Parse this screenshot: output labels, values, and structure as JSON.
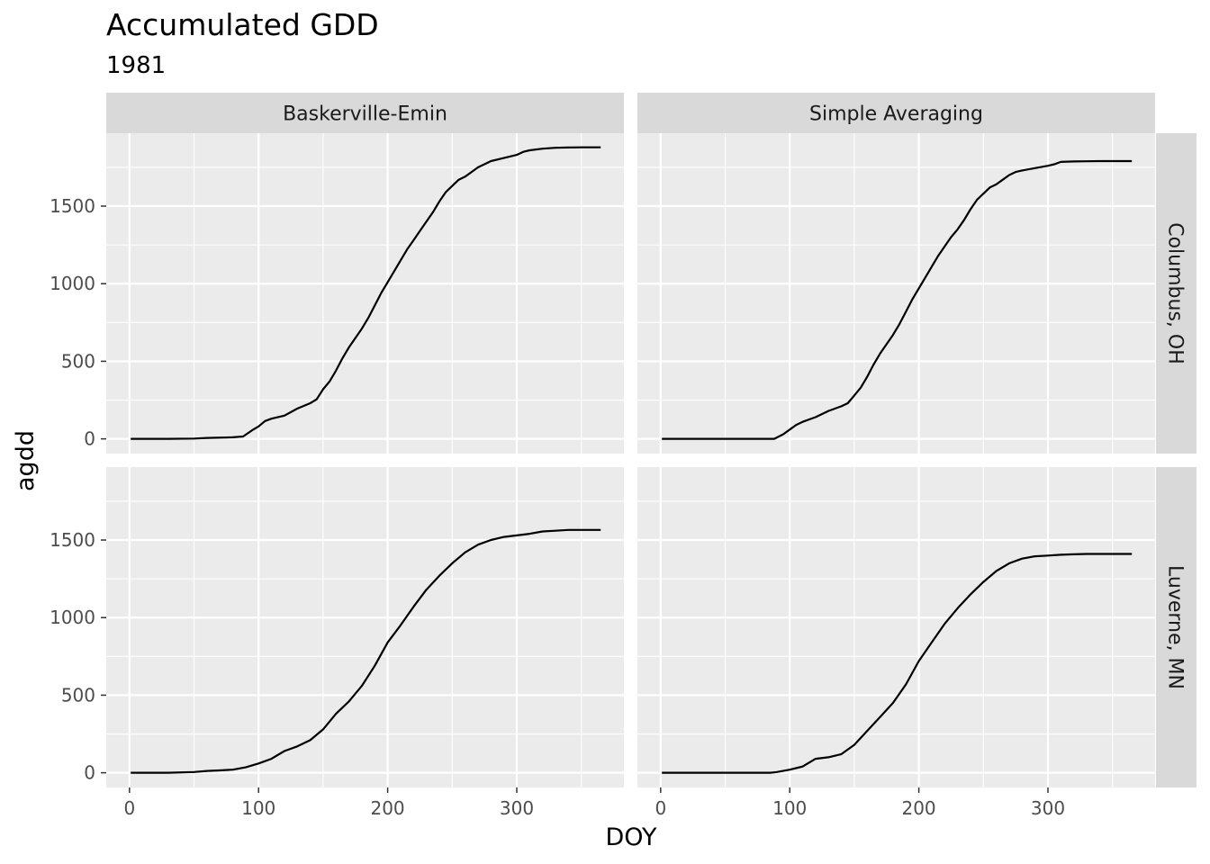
{
  "chart_data": {
    "type": "line",
    "title": "Accumulated GDD",
    "subtitle": "1981",
    "xlabel": "DOY",
    "ylabel": "agdd",
    "xlim": [
      -18,
      383
    ],
    "ylim": [
      -95,
      1970
    ],
    "xticks": [
      0,
      100,
      200,
      300
    ],
    "yticks": [
      0,
      500,
      1000,
      1500
    ],
    "xminor": [
      50,
      150,
      250,
      350
    ],
    "yminor": [
      250,
      750,
      1250,
      1750
    ],
    "grid": true,
    "column_facets": [
      "Baskerville-Emin",
      "Simple Averaging"
    ],
    "row_facets": [
      "Columbus, OH",
      "Luverne, MN"
    ],
    "panels": [
      {
        "row": "Columbus, OH",
        "col": "Baskerville-Emin",
        "x": [
          1,
          30,
          50,
          60,
          80,
          88,
          95,
          100,
          105,
          110,
          120,
          130,
          140,
          145,
          150,
          155,
          160,
          165,
          170,
          175,
          180,
          185,
          190,
          195,
          200,
          205,
          210,
          215,
          220,
          225,
          230,
          235,
          240,
          245,
          250,
          255,
          260,
          265,
          270,
          275,
          280,
          290,
          300,
          305,
          310,
          320,
          330,
          340,
          350,
          365
        ],
        "y": [
          0,
          0,
          2,
          6,
          10,
          15,
          55,
          80,
          115,
          130,
          150,
          195,
          230,
          255,
          320,
          370,
          440,
          520,
          590,
          650,
          710,
          780,
          860,
          940,
          1010,
          1080,
          1150,
          1220,
          1280,
          1340,
          1400,
          1460,
          1530,
          1590,
          1630,
          1670,
          1690,
          1720,
          1750,
          1770,
          1790,
          1810,
          1830,
          1850,
          1860,
          1870,
          1876,
          1878,
          1879,
          1879
        ]
      },
      {
        "row": "Columbus, OH",
        "col": "Simple Averaging",
        "x": [
          1,
          30,
          50,
          60,
          80,
          88,
          95,
          100,
          105,
          110,
          120,
          130,
          140,
          145,
          150,
          155,
          160,
          165,
          170,
          175,
          180,
          185,
          190,
          195,
          200,
          205,
          210,
          215,
          220,
          225,
          230,
          235,
          240,
          245,
          250,
          255,
          260,
          265,
          270,
          275,
          280,
          290,
          300,
          305,
          310,
          320,
          330,
          340,
          350,
          365
        ],
        "y": [
          0,
          0,
          0,
          0,
          0,
          0,
          30,
          60,
          90,
          110,
          140,
          180,
          210,
          230,
          280,
          330,
          400,
          480,
          550,
          610,
          670,
          740,
          820,
          900,
          970,
          1040,
          1110,
          1180,
          1240,
          1300,
          1350,
          1410,
          1480,
          1540,
          1580,
          1620,
          1640,
          1670,
          1700,
          1720,
          1730,
          1745,
          1760,
          1770,
          1785,
          1788,
          1789,
          1790,
          1790,
          1790
        ]
      },
      {
        "row": "Luverne, MN",
        "col": "Baskerville-Emin",
        "x": [
          1,
          30,
          50,
          60,
          70,
          80,
          90,
          100,
          110,
          120,
          130,
          140,
          150,
          160,
          170,
          180,
          190,
          200,
          210,
          220,
          230,
          240,
          250,
          260,
          270,
          280,
          290,
          300,
          310,
          320,
          330,
          340,
          365
        ],
        "y": [
          0,
          0,
          5,
          12,
          15,
          20,
          35,
          60,
          90,
          140,
          170,
          210,
          280,
          380,
          460,
          560,
          690,
          840,
          950,
          1070,
          1180,
          1270,
          1350,
          1420,
          1470,
          1500,
          1520,
          1530,
          1540,
          1555,
          1560,
          1565,
          1565
        ]
      },
      {
        "row": "Luverne, MN",
        "col": "Simple Averaging",
        "x": [
          1,
          30,
          60,
          85,
          90,
          100,
          110,
          120,
          130,
          140,
          150,
          160,
          170,
          180,
          190,
          200,
          210,
          220,
          230,
          240,
          250,
          260,
          270,
          280,
          290,
          300,
          310,
          320,
          330,
          365
        ],
        "y": [
          0,
          0,
          0,
          0,
          5,
          20,
          40,
          90,
          100,
          120,
          180,
          270,
          360,
          450,
          570,
          720,
          840,
          960,
          1060,
          1150,
          1230,
          1300,
          1350,
          1380,
          1395,
          1400,
          1405,
          1408,
          1410,
          1410
        ]
      }
    ]
  }
}
